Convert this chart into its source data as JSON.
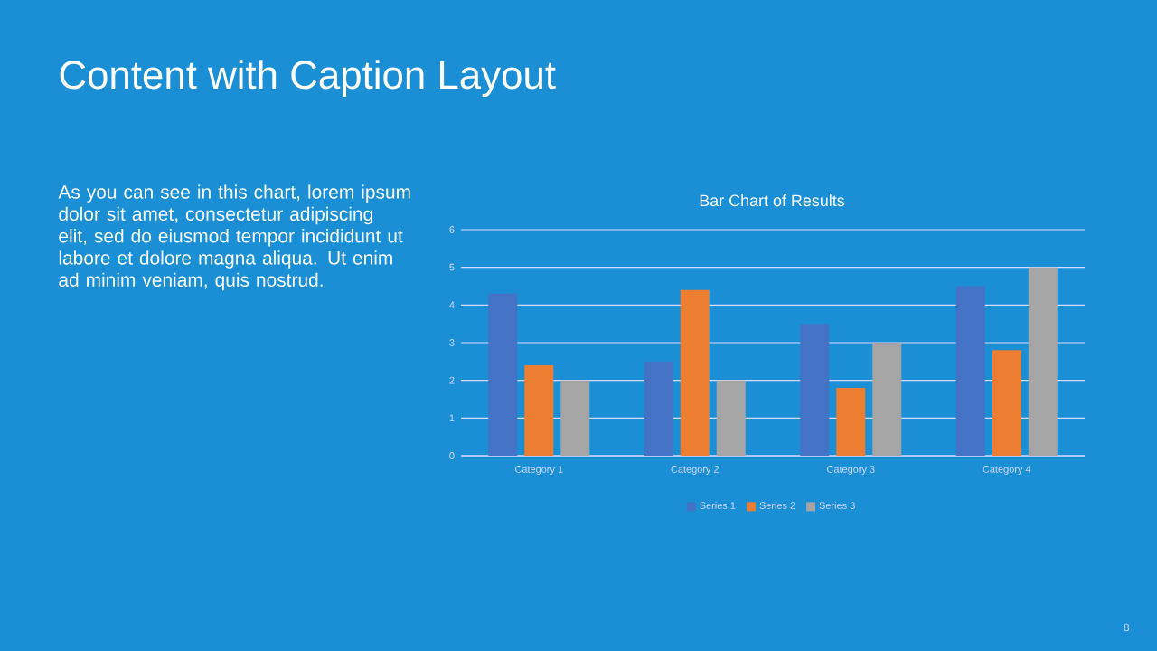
{
  "chart_data": {
    "type": "bar",
    "title": "Content with Caption Layout",
    "subtitle": "Bar Chart of Results",
    "annotations": [
      "As you can see in this chart, lorem ipsum dolor sit amet, consectetur adipiscing elit, sed do eiusmod tempor incididunt ut labore et dolore magna aliqua. Ut enim ad minim veniam, quis nostrud.",
      "8"
    ],
    "categories": [
      "Category 1",
      "Category 2",
      "Category 3",
      "Category 4"
    ],
    "series": [
      {
        "name": "Series 1",
        "color": "#4472c4",
        "values": [
          4.3,
          2.5,
          3.5,
          4.5
        ]
      },
      {
        "name": "Series 2",
        "color": "#ed7d31",
        "values": [
          2.4,
          4.4,
          1.8,
          2.8
        ]
      },
      {
        "name": "Series 3",
        "color": "#a5a5a5",
        "values": [
          2,
          2,
          3,
          5
        ]
      }
    ],
    "ylim": [
      0,
      6
    ],
    "yticks": [
      0,
      1,
      2,
      3,
      4,
      5,
      6
    ],
    "grid": "y",
    "legend": "bottom"
  }
}
